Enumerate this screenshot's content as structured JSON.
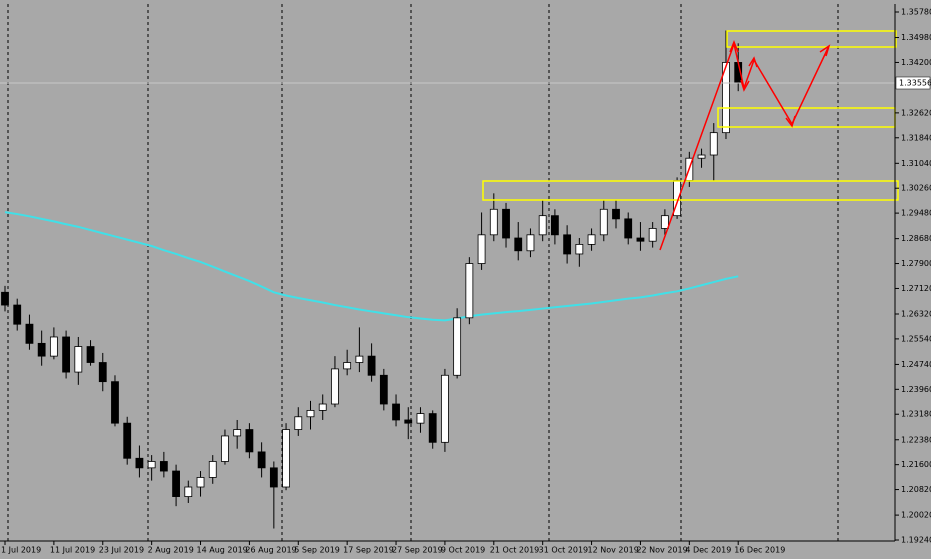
{
  "chart_data": {
    "type": "candlestick",
    "categories": [
      "1 Jul 2019",
      null,
      null,
      null,
      "11 Jul 2019",
      null,
      null,
      null,
      "23 Jul 2019",
      null,
      null,
      null,
      "2 Aug 2019",
      null,
      null,
      null,
      "14 Aug 2019",
      null,
      null,
      null,
      "26 Aug 2019",
      null,
      null,
      null,
      "5 Sep 2019",
      null,
      null,
      null,
      "17 Sep 2019",
      null,
      null,
      null,
      "27 Sep 2019",
      null,
      null,
      null,
      "9 Oct 2019",
      null,
      null,
      null,
      "21 Oct 2019",
      null,
      null,
      null,
      "31 Oct 2019",
      null,
      null,
      null,
      "12 Nov 2019",
      null,
      null,
      null,
      "22 Nov 2019",
      null,
      null,
      null,
      "4 Dec 2019",
      null,
      null,
      null,
      "16 Dec 2019"
    ],
    "ohlc": [
      [
        1.27,
        1.272,
        1.264,
        1.266
      ],
      [
        1.266,
        1.268,
        1.258,
        1.26
      ],
      [
        1.26,
        1.263,
        1.252,
        1.254
      ],
      [
        1.254,
        1.258,
        1.247,
        1.25
      ],
      [
        1.25,
        1.259,
        1.249,
        1.256
      ],
      [
        1.256,
        1.258,
        1.243,
        1.245
      ],
      [
        1.245,
        1.256,
        1.241,
        1.253
      ],
      [
        1.253,
        1.255,
        1.247,
        1.248
      ],
      [
        1.248,
        1.251,
        1.239,
        1.242
      ],
      [
        1.242,
        1.244,
        1.228,
        1.229
      ],
      [
        1.229,
        1.231,
        1.216,
        1.218
      ],
      [
        1.218,
        1.222,
        1.212,
        1.215
      ],
      [
        1.215,
        1.219,
        1.211,
        1.217
      ],
      [
        1.217,
        1.22,
        1.212,
        1.214
      ],
      [
        1.214,
        1.216,
        1.203,
        1.206
      ],
      [
        1.206,
        1.211,
        1.204,
        1.209
      ],
      [
        1.209,
        1.214,
        1.206,
        1.212
      ],
      [
        1.212,
        1.219,
        1.21,
        1.217
      ],
      [
        1.217,
        1.227,
        1.216,
        1.225
      ],
      [
        1.225,
        1.23,
        1.221,
        1.227
      ],
      [
        1.227,
        1.229,
        1.218,
        1.22
      ],
      [
        1.22,
        1.223,
        1.212,
        1.215
      ],
      [
        1.215,
        1.217,
        1.196,
        1.209
      ],
      [
        1.209,
        1.229,
        1.208,
        1.227
      ],
      [
        1.227,
        1.234,
        1.225,
        1.231
      ],
      [
        1.231,
        1.236,
        1.227,
        1.233
      ],
      [
        1.233,
        1.238,
        1.23,
        1.235
      ],
      [
        1.235,
        1.25,
        1.234,
        1.246
      ],
      [
        1.246,
        1.252,
        1.244,
        1.248
      ],
      [
        1.248,
        1.259,
        1.245,
        1.25
      ],
      [
        1.25,
        1.254,
        1.242,
        1.244
      ],
      [
        1.244,
        1.246,
        1.233,
        1.235
      ],
      [
        1.235,
        1.238,
        1.228,
        1.23
      ],
      [
        1.23,
        1.234,
        1.224,
        1.229
      ],
      [
        1.229,
        1.234,
        1.226,
        1.232
      ],
      [
        1.232,
        1.233,
        1.221,
        1.223
      ],
      [
        1.223,
        1.246,
        1.22,
        1.244
      ],
      [
        1.244,
        1.265,
        1.243,
        1.262
      ],
      [
        1.262,
        1.281,
        1.26,
        1.279
      ],
      [
        1.279,
        1.295,
        1.277,
        1.288
      ],
      [
        1.288,
        1.301,
        1.286,
        1.296
      ],
      [
        1.296,
        1.298,
        1.284,
        1.287
      ],
      [
        1.287,
        1.292,
        1.28,
        1.283
      ],
      [
        1.283,
        1.29,
        1.281,
        1.288
      ],
      [
        1.288,
        1.299,
        1.286,
        1.294
      ],
      [
        1.294,
        1.296,
        1.285,
        1.288
      ],
      [
        1.288,
        1.291,
        1.279,
        1.282
      ],
      [
        1.282,
        1.287,
        1.278,
        1.285
      ],
      [
        1.285,
        1.29,
        1.283,
        1.288
      ],
      [
        1.288,
        1.299,
        1.286,
        1.296
      ],
      [
        1.296,
        1.299,
        1.29,
        1.293
      ],
      [
        1.293,
        1.295,
        1.285,
        1.287
      ],
      [
        1.287,
        1.292,
        1.283,
        1.286
      ],
      [
        1.286,
        1.292,
        1.284,
        1.29
      ],
      [
        1.29,
        1.296,
        1.288,
        1.294
      ],
      [
        1.294,
        1.306,
        1.293,
        1.305
      ],
      [
        1.305,
        1.314,
        1.303,
        1.312
      ],
      [
        1.312,
        1.315,
        1.309,
        1.313
      ],
      [
        1.313,
        1.323,
        1.305,
        1.32
      ],
      [
        1.32,
        1.352,
        1.318,
        1.342
      ],
      [
        1.342,
        1.348,
        1.333,
        1.3356
      ]
    ],
    "ma": {
      "color": "#40e0e8",
      "values": [
        1.2951,
        1.2945,
        1.2938,
        1.293,
        1.2922,
        1.2913,
        1.2905,
        1.2895,
        1.2885,
        1.2875,
        1.2865,
        1.2855,
        1.2845,
        1.2832,
        1.282,
        1.2807,
        1.2795,
        1.278,
        1.2765,
        1.275,
        1.2735,
        1.2718,
        1.27,
        1.269,
        1.2682,
        1.2675,
        1.2668,
        1.266,
        1.2653,
        1.2646,
        1.264,
        1.2634,
        1.2628,
        1.2622,
        1.2618,
        1.2614,
        1.2612,
        1.2618,
        1.2625,
        1.263,
        1.2634,
        1.2638,
        1.2641,
        1.2645,
        1.2649,
        1.2653,
        1.2657,
        1.2661,
        1.2665,
        1.267,
        1.2675,
        1.268,
        1.2684,
        1.269,
        1.2697,
        1.2703,
        1.2712,
        1.2722,
        1.2732,
        1.2742,
        1.275
      ]
    },
    "current_price": 1.33556,
    "ylim": [
      1.1924,
      1.3578
    ],
    "yticks": [
      {
        "value": 1.3578,
        "label": "1.35780"
      },
      {
        "value": 1.3498,
        "label": "1.34980"
      },
      {
        "value": 1.342,
        "label": "1.34200"
      },
      {
        "value": 1.3262,
        "label": "1.32620"
      },
      {
        "value": 1.3184,
        "label": "1.31840"
      },
      {
        "value": 1.3104,
        "label": "1.31040"
      },
      {
        "value": 1.3026,
        "label": "1.30260"
      },
      {
        "value": 1.2948,
        "label": "1.29480"
      },
      {
        "value": 1.2868,
        "label": "1.28680"
      },
      {
        "value": 1.279,
        "label": "1.27900"
      },
      {
        "value": 1.2712,
        "label": "1.27120"
      },
      {
        "value": 1.2632,
        "label": "1.26320"
      },
      {
        "value": 1.2554,
        "label": "1.25540"
      },
      {
        "value": 1.2474,
        "label": "1.24740"
      },
      {
        "value": 1.2396,
        "label": "1.23960"
      },
      {
        "value": 1.2318,
        "label": "1.23180"
      },
      {
        "value": 1.2238,
        "label": "1.22380"
      },
      {
        "value": 1.216,
        "label": "1.21600"
      },
      {
        "value": 1.2082,
        "label": "1.20820"
      },
      {
        "value": 1.2002,
        "label": "1.20020"
      },
      {
        "value": 1.1924,
        "label": "1.19240"
      }
    ]
  }
}
